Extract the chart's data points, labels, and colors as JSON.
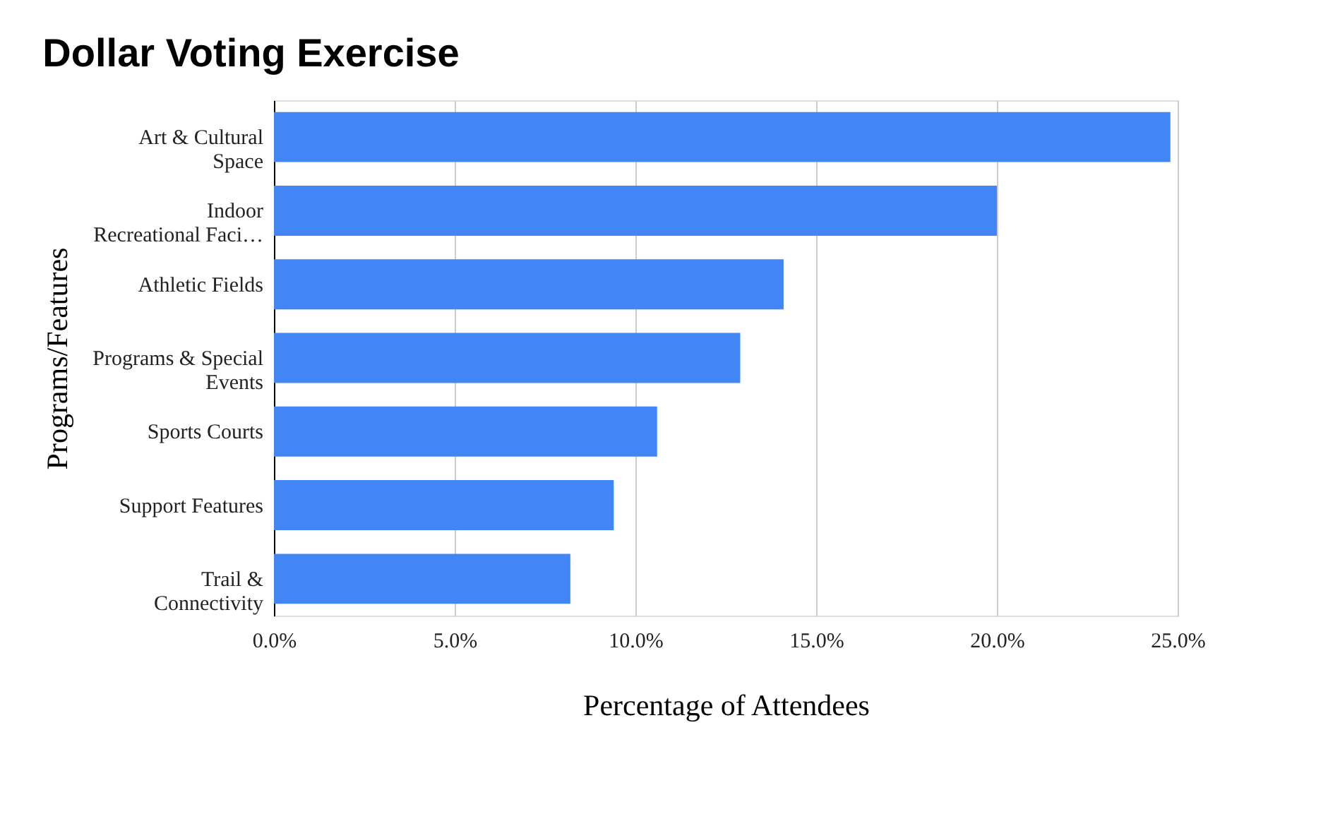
{
  "chart_data": {
    "type": "bar",
    "orientation": "horizontal",
    "title": "Dollar Voting Exercise",
    "xlabel": "Percentage of Attendees",
    "ylabel": "Programs/Features",
    "categories": [
      "Art & Cultural\nSpace",
      "Indoor\nRecreational Faci…",
      "Athletic Fields",
      "Programs & Special\nEvents",
      "Sports Courts",
      "Support Features",
      "Trail &\nConnectivity"
    ],
    "values": [
      24.8,
      20.0,
      14.1,
      12.9,
      10.6,
      9.4,
      8.2
    ],
    "color": "#4285f4",
    "xlim": [
      0,
      25
    ],
    "xticks": [
      {
        "value": 0,
        "label": "0.0%"
      },
      {
        "value": 5,
        "label": "5.0%"
      },
      {
        "value": 10,
        "label": "10.0%"
      },
      {
        "value": 15,
        "label": "15.0%"
      },
      {
        "value": 20,
        "label": "20.0%"
      },
      {
        "value": 25,
        "label": "25.0%"
      }
    ],
    "grid": "x"
  }
}
